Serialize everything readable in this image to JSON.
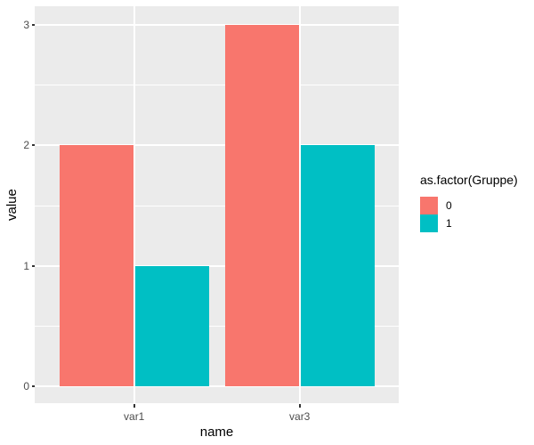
{
  "chart_data": {
    "type": "bar",
    "categories": [
      "var1",
      "var3"
    ],
    "series": [
      {
        "name": "0",
        "color": "#F8766D",
        "values": [
          2,
          3
        ]
      },
      {
        "name": "1",
        "color": "#00BFC4",
        "values": [
          1,
          2
        ]
      }
    ],
    "title": "",
    "xlabel": "name",
    "ylabel": "value",
    "ylim": [
      0,
      3
    ],
    "yticks": [
      0,
      1,
      2,
      3
    ],
    "legend_title": "as.factor(Gruppe)",
    "legend_position": "right",
    "grid": true,
    "panel_background": "#EBEBEB",
    "gridline_color": "#FFFFFF",
    "tick_label_color": "#4D4D4D"
  }
}
